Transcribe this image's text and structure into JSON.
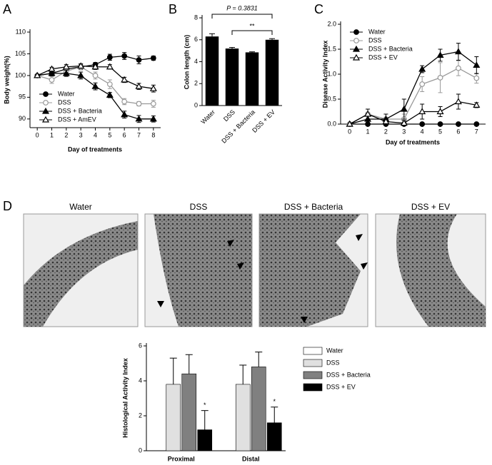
{
  "chart_data": [
    {
      "type": "line",
      "panel_label": "A",
      "x_label": "Day of treatments",
      "y_label": "Body weight(%)",
      "x": [
        0,
        1,
        2,
        3,
        4,
        5,
        6,
        7,
        8
      ],
      "xlim": [
        -0.5,
        8.5
      ],
      "xticks": [
        0,
        1,
        2,
        3,
        4,
        5,
        6,
        7,
        8
      ],
      "ylim": [
        88,
        110
      ],
      "yticks": [
        90,
        95,
        100,
        105,
        110
      ],
      "legend": "lower left",
      "series": [
        {
          "name": "Water",
          "color": "#000000",
          "marker": "filled-circle",
          "values": [
            100,
            100.5,
            101.5,
            102,
            102.5,
            104.2,
            104.5,
            103.6,
            104
          ],
          "errors": [
            0.2,
            0.5,
            0.6,
            0.6,
            0.5,
            0.7,
            0.8,
            0.9,
            0.5
          ]
        },
        {
          "name": "DSS",
          "color": "#999999",
          "marker": "open-circle",
          "values": [
            100,
            99,
            101,
            102,
            100,
            98,
            94,
            93.5,
            93.5
          ],
          "errors": [
            0.2,
            0.8,
            0.8,
            0.7,
            0.8,
            1,
            0.7,
            0.5,
            0.8
          ]
        },
        {
          "name": "DSS + Bacteria",
          "color": "#000000",
          "marker": "filled-triangle",
          "values": [
            100,
            100.5,
            100.5,
            100,
            97.5,
            95.5,
            91,
            90,
            90
          ],
          "errors": [
            0.2,
            0.6,
            0.7,
            0.8,
            0.8,
            0.6,
            0.8,
            0.8,
            0.7
          ]
        },
        {
          "name": "DSS + AmEV",
          "color": "#000000",
          "marker": "open-triangle",
          "values": [
            100,
            101.5,
            102,
            102.2,
            102,
            102,
            99,
            97.5,
            97
          ],
          "errors": [
            0.2,
            0.4,
            0.5,
            0.5,
            0.6,
            0.5,
            0.6,
            0.7,
            0.8
          ]
        }
      ]
    },
    {
      "type": "bar",
      "panel_label": "B",
      "y_label": "Colon length (cm)",
      "categories": [
        "Water",
        "DSS",
        "DSS + Bacteria",
        "DSS + EV"
      ],
      "values": [
        6.3,
        5.2,
        4.85,
        6.0
      ],
      "errors": [
        0.25,
        0.1,
        0.05,
        0.1
      ],
      "color": "#000000",
      "ylim": [
        0,
        8
      ],
      "yticks": [
        0,
        2,
        4,
        6,
        8
      ],
      "annotations": [
        "P = 0.3831",
        "**"
      ]
    },
    {
      "type": "line",
      "panel_label": "C",
      "x_label": "Day of treatments",
      "y_label": "Disease Activity Index",
      "x": [
        0,
        1,
        2,
        3,
        4,
        5,
        6,
        7
      ],
      "xlim": [
        -0.5,
        7.5
      ],
      "xticks": [
        0,
        1,
        2,
        3,
        4,
        5,
        6,
        7
      ],
      "ylim": [
        0,
        2
      ],
      "yticks": [
        {
          "value": 0,
          "label": "0.0"
        },
        {
          "value": 0.5,
          "label": "0.5"
        },
        {
          "value": 1,
          "label": "1.0"
        },
        {
          "value": 1.5,
          "label": "1.5"
        },
        {
          "value": 2,
          "label": "2.0"
        }
      ],
      "legend": "upper left",
      "series": [
        {
          "name": "Water",
          "color": "#000000",
          "marker": "filled-circle",
          "values": [
            0,
            0,
            0,
            0,
            0,
            0,
            0,
            0
          ],
          "errors": [
            0,
            0,
            0,
            0,
            0,
            0,
            0,
            0
          ]
        },
        {
          "name": "DSS",
          "color": "#999999",
          "marker": "open-circle",
          "values": [
            0,
            0.2,
            0.1,
            0.1,
            0.8,
            0.93,
            1.12,
            0.92
          ],
          "errors": [
            0,
            0.1,
            0.1,
            0.1,
            0.15,
            0.3,
            0.15,
            0.1
          ]
        },
        {
          "name": "DSS + Bacteria",
          "color": "#000000",
          "marker": "filled-triangle",
          "values": [
            0,
            0.1,
            0.1,
            0.3,
            1.1,
            1.38,
            1.45,
            1.18
          ],
          "errors": [
            0,
            0.1,
            0.1,
            0.2,
            0.07,
            0.12,
            0.17,
            0.17
          ]
        },
        {
          "name": "DSS + EV",
          "color": "#000000",
          "marker": "open-triangle",
          "values": [
            0,
            0.2,
            0.05,
            0.02,
            0.25,
            0.25,
            0.45,
            0.38
          ],
          "errors": [
            0,
            0.1,
            0.05,
            0.05,
            0.15,
            0.1,
            0.15,
            0.05
          ]
        }
      ]
    },
    {
      "type": "grouped-bar",
      "y_label": "Histological Activity Index",
      "categories": [
        "Proximal",
        "Distal"
      ],
      "ylim": [
        0,
        6
      ],
      "yticks": [
        0,
        2,
        4,
        6
      ],
      "series": [
        {
          "name": "Water",
          "color": "#ffffff",
          "values": [
            0,
            0
          ],
          "errors": [
            0,
            0
          ]
        },
        {
          "name": "DSS",
          "color": "#e0e0e0",
          "values": [
            3.8,
            3.8
          ],
          "errors": [
            1.5,
            1.1
          ]
        },
        {
          "name": "DSS + Bacteria",
          "color": "#808080",
          "values": [
            4.4,
            4.8
          ],
          "errors": [
            1.1,
            0.85
          ]
        },
        {
          "name": "DSS + EV",
          "color": "#000000",
          "values": [
            1.2,
            1.6
          ],
          "errors": [
            1.1,
            0.9
          ],
          "significance": [
            "*",
            "*"
          ]
        }
      ]
    }
  ],
  "histology": {
    "panel_label": "D",
    "titles": [
      "Water",
      "DSS",
      "DSS + Bacteria",
      "DSS + EV"
    ]
  }
}
